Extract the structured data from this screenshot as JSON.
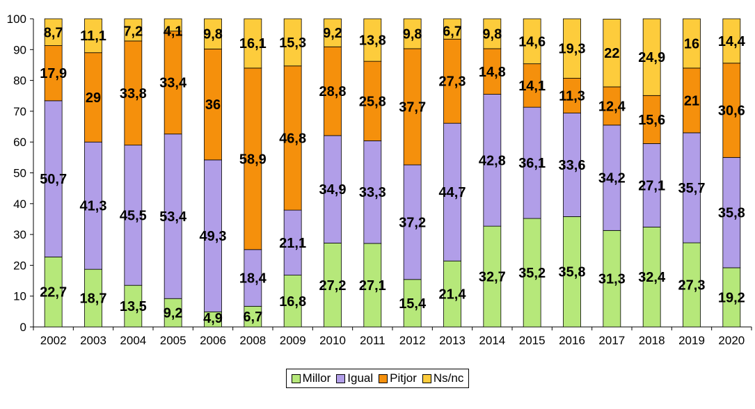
{
  "chart_data": {
    "type": "bar",
    "stacked": true,
    "categories": [
      "2002",
      "2003",
      "2004",
      "2005",
      "2006",
      "2008",
      "2009",
      "2010",
      "2011",
      "2012",
      "2013",
      "2014",
      "2015",
      "2016",
      "2017",
      "2018",
      "2019",
      "2020"
    ],
    "series": [
      {
        "name": "Millor",
        "color": "#b6e87a",
        "values": [
          22.7,
          18.7,
          13.5,
          9.2,
          4.9,
          6.7,
          16.8,
          27.2,
          27.1,
          15.4,
          21.4,
          32.7,
          35.2,
          35.8,
          31.3,
          32.4,
          27.3,
          19.2
        ]
      },
      {
        "name": "Igual",
        "color": "#b19ee8",
        "values": [
          50.7,
          41.3,
          45.5,
          53.4,
          49.3,
          18.4,
          21.1,
          34.9,
          33.3,
          37.2,
          44.7,
          42.8,
          36.1,
          33.6,
          34.2,
          27.1,
          35.7,
          35.8
        ]
      },
      {
        "name": "Pitjor",
        "color": "#f5900c",
        "values": [
          17.9,
          29,
          33.8,
          33.4,
          36,
          58.9,
          46.8,
          28.8,
          25.8,
          37.7,
          27.3,
          14.8,
          14.1,
          11.3,
          12.4,
          15.6,
          21,
          30.6
        ]
      },
      {
        "name": "Ns/nc",
        "color": "#fdcc3c",
        "values": [
          8.7,
          11.1,
          7.2,
          4.1,
          9.8,
          16.1,
          15.3,
          9.2,
          13.8,
          9.8,
          6.7,
          9.8,
          14.6,
          19.3,
          22,
          24.9,
          16,
          14.4
        ]
      }
    ],
    "labels": {
      "Millor": [
        "22,7",
        "18,7",
        "13,5",
        "9,2",
        "4,9",
        "6,7",
        "16,8",
        "27,2",
        "27,1",
        "15,4",
        "21,4",
        "32,7",
        "35,2",
        "35,8",
        "31,3",
        "32,4",
        "27,3",
        "19,2"
      ],
      "Igual": [
        "50,7",
        "41,3",
        "45,5",
        "53,4",
        "49,3",
        "18,4",
        "21,1",
        "34,9",
        "33,3",
        "37,2",
        "44,7",
        "42,8",
        "36,1",
        "33,6",
        "34,2",
        "27,1",
        "35,7",
        "35,8"
      ],
      "Pitjor": [
        "17,9",
        "29",
        "33,8",
        "33,4",
        "36",
        "58,9",
        "46,8",
        "28,8",
        "25,8",
        "37,7",
        "27,3",
        "14,8",
        "14,1",
        "11,3",
        "12,4",
        "15,6",
        "21",
        "30,6"
      ],
      "Ns/nc": [
        "8,7",
        "11,1",
        "7,2",
        "4,1",
        "9,8",
        "16,1",
        "15,3",
        "9,2",
        "13,8",
        "9,8",
        "6,7",
        "9,8",
        "14,6",
        "19,3",
        "22",
        "24,9",
        "16",
        "14,4"
      ]
    },
    "yticks": [
      "0",
      "10",
      "20",
      "30",
      "40",
      "50",
      "60",
      "70",
      "80",
      "90",
      "100"
    ],
    "ylim": [
      0,
      100
    ],
    "grid": false,
    "legend_position": "bottom"
  }
}
